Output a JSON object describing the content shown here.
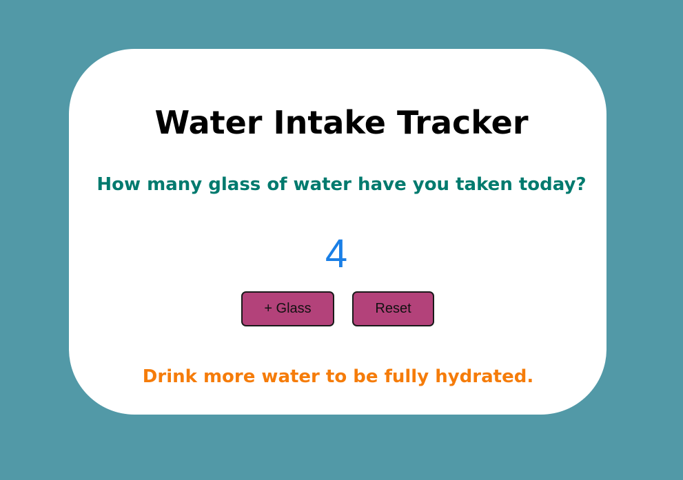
{
  "app": {
    "title": "Water Intake Tracker",
    "question": "How many glass of water have you taken today?",
    "count": "4",
    "message": "Drink more water to be fully hydrated."
  },
  "buttons": {
    "add_label": "+ Glass",
    "reset_label": "Reset"
  },
  "colors": {
    "background": "#5299a7",
    "card": "#ffffff",
    "question": "#007a6e",
    "count": "#1a7fe6",
    "button": "#b3427a",
    "message": "#f57c0a"
  }
}
